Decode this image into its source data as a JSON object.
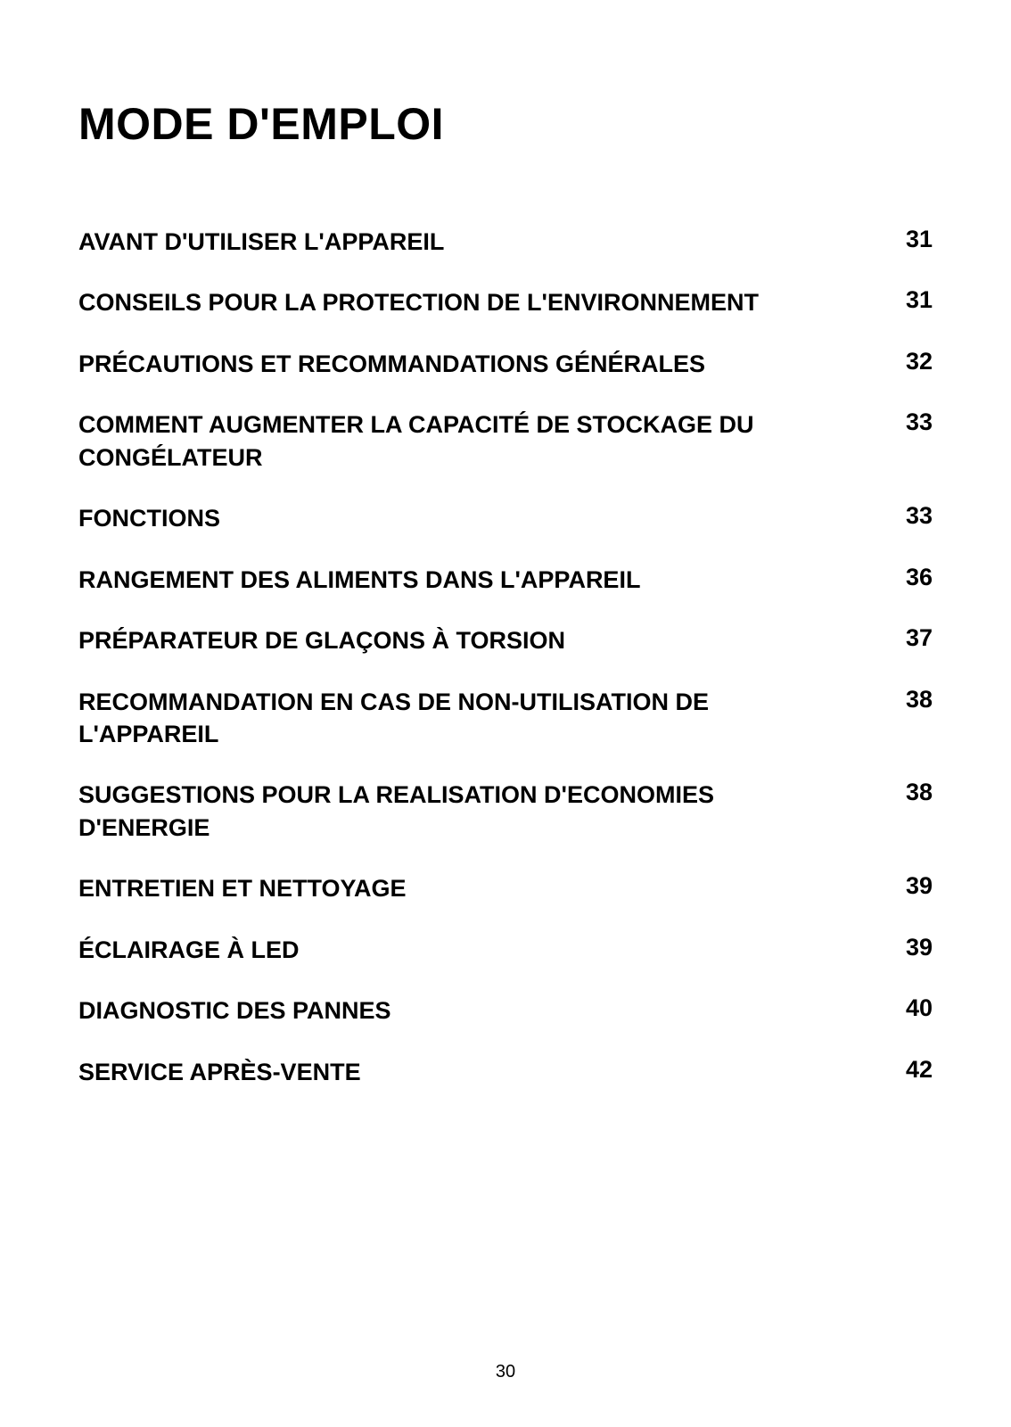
{
  "title": "MODE D'EMPLOI",
  "toc": [
    {
      "label": "AVANT D'UTILISER L'APPAREIL",
      "page": "31"
    },
    {
      "label": "CONSEILS POUR LA PROTECTION DE L'ENVIRONNEMENT",
      "page": "31"
    },
    {
      "label": "PRÉCAUTIONS ET RECOMMANDATIONS GÉNÉRALES",
      "page": "32"
    },
    {
      "label": "COMMENT AUGMENTER LA CAPACITÉ DE STOCKAGE DU CONGÉLATEUR",
      "page": "33"
    },
    {
      "label": "FONCTIONS",
      "page": "33"
    },
    {
      "label": "RANGEMENT DES ALIMENTS DANS L'APPAREIL",
      "page": "36"
    },
    {
      "label": "PRÉPARATEUR DE GLAÇONS À TORSION",
      "page": "37"
    },
    {
      "label": "RECOMMANDATION EN CAS DE NON-UTILISATION DE L'APPAREIL",
      "page": "38"
    },
    {
      "label": "SUGGESTIONS POUR LA REALISATION D'ECONOMIES D'ENERGIE",
      "page": "38"
    },
    {
      "label": "ENTRETIEN ET NETTOYAGE",
      "page": "39"
    },
    {
      "label": "ÉCLAIRAGE À LED",
      "page": "39"
    },
    {
      "label": "DIAGNOSTIC DES PANNES",
      "page": "40"
    },
    {
      "label": "SERVICE APRÈS-VENTE",
      "page": "42"
    }
  ],
  "pageNumber": "30",
  "styles": {
    "backgroundColor": "#ffffff",
    "textColor": "#000000",
    "titleFontSize": 50,
    "tocFontSize": 27,
    "pageNumberFontSize": 20
  }
}
